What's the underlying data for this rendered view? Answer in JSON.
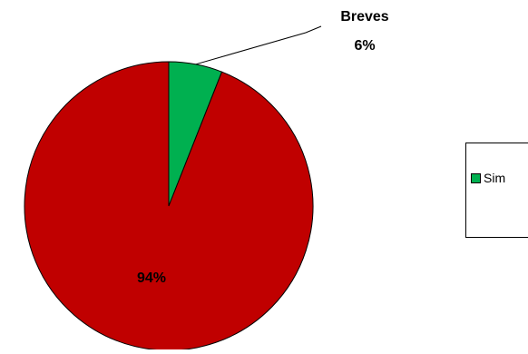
{
  "chart_data": {
    "type": "pie",
    "title": "",
    "slices": [
      {
        "name": "Breves",
        "value": 6,
        "label_name": "Breves",
        "label_value": "6%",
        "color": "#00B050"
      },
      {
        "name": "",
        "value": 94,
        "label_name": "",
        "label_value": "94%",
        "color": "#C00000"
      }
    ],
    "legend": {
      "position": "right",
      "entries": [
        {
          "label": "Sim",
          "color": "#00B050"
        }
      ]
    }
  }
}
